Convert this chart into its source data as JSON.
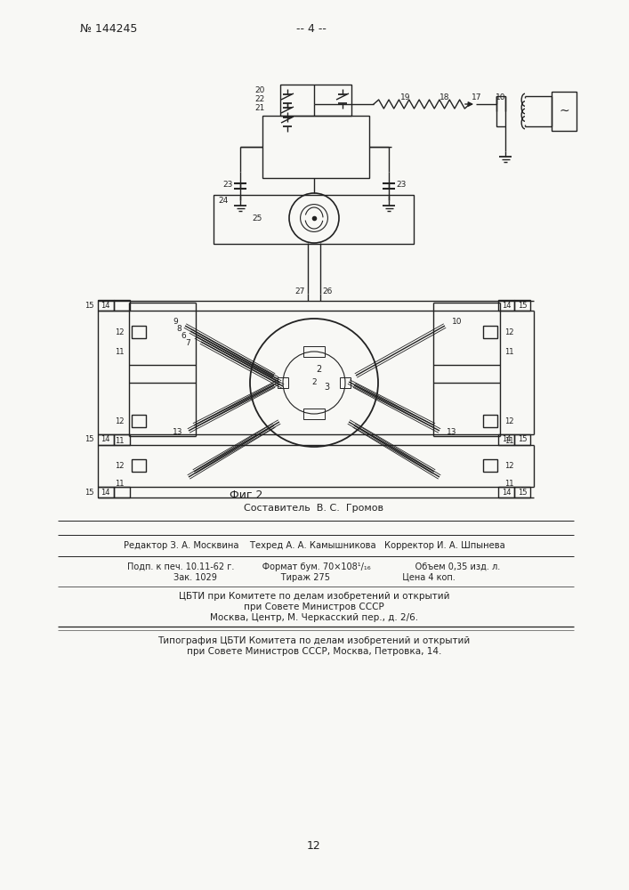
{
  "patent_number": "№ 144245",
  "page_marker": "-- 4 --",
  "fig_label": "Фиг 2",
  "page_bottom": "12",
  "composer_line": "Составитель  В. С.  Громов",
  "editor_line": "Редактор З. А. Москвина    Техред А. А. Камышникова   Корректор И. А. Шпынева",
  "print_line1": "Подп. к печ. 10.11-62 г.          Формат бум. 70×108¹/₁₆                Объем 0,35 изд. л.",
  "print_line2": "Зак. 1029                       Тираж 275                          Цена 4 коп.",
  "cbti_line1": "ЦБТИ при Комитете по делам изобретений и открытий",
  "cbti_line2": "при Совете Министров СССР",
  "cbti_line3": "Москва, Центр, М. Черкасский пер., д. 2/6.",
  "typo_line1": "Типография ЦБТИ Комитета по делам изобретений и открытий",
  "typo_line2": "при Совете Министров СССР, Москва, Петровка, 14.",
  "bg_color": "#f8f8f5"
}
